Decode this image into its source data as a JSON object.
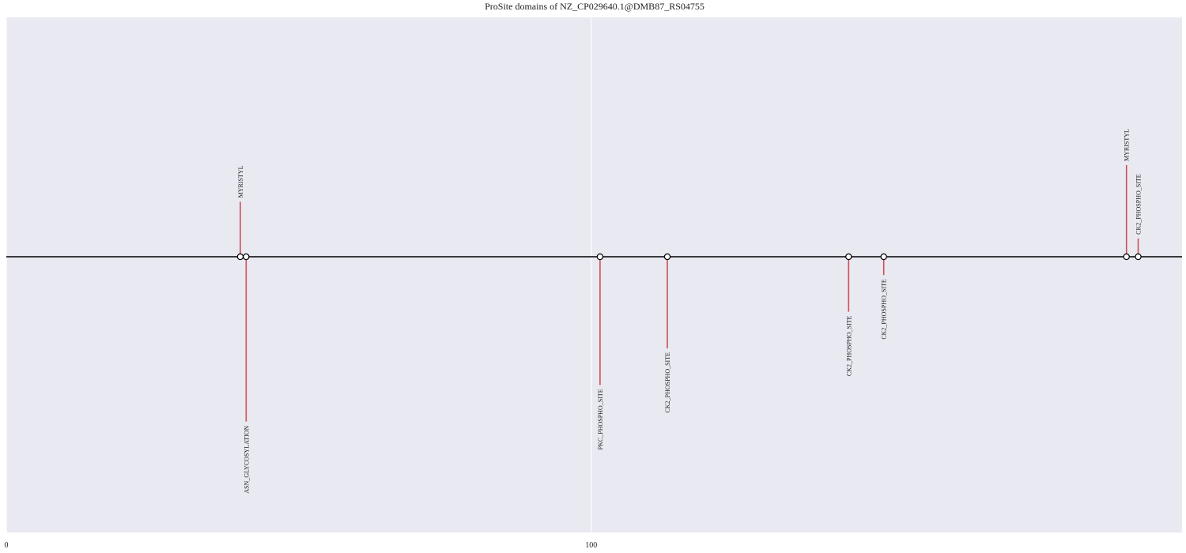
{
  "chart_data": {
    "type": "lollipop",
    "title": "ProSite domains of NZ_CP029640.1@DMB87_RS04755",
    "xlabel": "",
    "ylabel": "",
    "xlim": [
      0,
      201
    ],
    "x_ticks": [
      {
        "value": 0,
        "label": "0"
      },
      {
        "value": 100,
        "label": "100"
      }
    ],
    "grid": true,
    "colors": {
      "background": "#e9e9f2",
      "stem": "#cd4f55",
      "baseline": "#000000",
      "gridline": "#ffffff",
      "marker_fill": "#ffffff",
      "marker_edge": "#000000"
    },
    "sites": [
      {
        "name": "MYRISTYL",
        "position": 40,
        "height": 0.3
      },
      {
        "name": "ASN_GLYCOSYLATION",
        "position": 41,
        "height": -0.9
      },
      {
        "name": "PKC_PHOSPHO_SITE",
        "position": 101.5,
        "height": -0.7
      },
      {
        "name": "CK2_PHOSPHO_SITE",
        "position": 113,
        "height": -0.5
      },
      {
        "name": "CK2_PHOSPHO_SITE",
        "position": 144,
        "height": -0.3
      },
      {
        "name": "CK2_PHOSPHO_SITE",
        "position": 150,
        "height": -0.1
      },
      {
        "name": "MYRISTYL",
        "position": 191.5,
        "height": 0.5
      },
      {
        "name": "CK2_PHOSPHO_SITE",
        "position": 193.5,
        "height": 0.1
      }
    ]
  }
}
